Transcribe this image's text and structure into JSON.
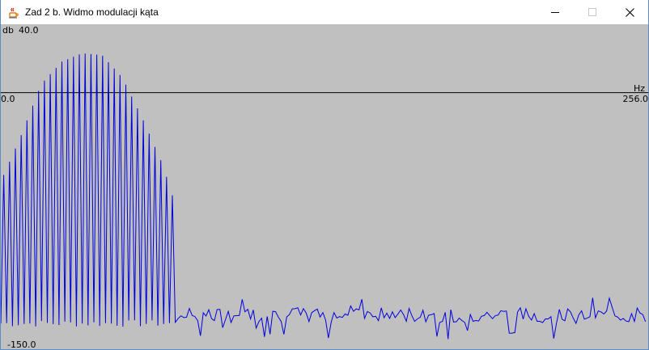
{
  "window": {
    "title": "Zad 2 b. Widmo modulacji kąta",
    "controls": [
      "minimize",
      "maximize",
      "close"
    ],
    "icons": {
      "app": "java-cup-icon",
      "minimize": "minimize-icon",
      "maximize": "maximize-icon",
      "close": "close-icon"
    }
  },
  "plot": {
    "background": "#c0c0c0",
    "line_color": "#0000dd",
    "axis_color": "#000000",
    "y_unit": "db",
    "y_max_label": "40.0",
    "y_min_label": "-150.0",
    "x_unit": "Hz",
    "x_min_label": "0.0",
    "x_max_label": "256.0"
  },
  "chart_data": {
    "type": "line",
    "xlabel": "Hz",
    "ylabel": "db",
    "xlim": [
      0,
      256
    ],
    "ylim": [
      -150,
      40
    ],
    "baseline_y": 0,
    "description": "",
    "series": [
      {
        "name": "",
        "peak_envelope": {
          "x": [
            0,
            8,
            16,
            24,
            32,
            40,
            48,
            56,
            64,
            70
          ],
          "y": [
            -52,
            -25,
            5,
            18,
            23,
            22,
            9,
            -15,
            -42,
            -70
          ]
        },
        "peak_spacing": 2.3,
        "trough_level": -135,
        "noise_floor_level": -130
      }
    ]
  }
}
